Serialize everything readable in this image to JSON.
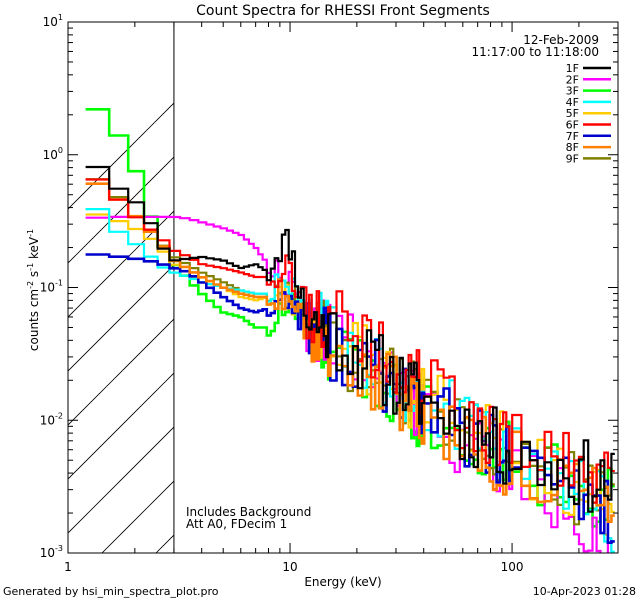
{
  "chart_data": {
    "type": "line",
    "title": "Count Spectra for RHESSI Front Segments",
    "xlabel": "Energy (keV)",
    "ylabel_parts": {
      "base": "counts cm",
      "e1": "-2",
      "mid": " s",
      "e2": "-1",
      "end": " keV",
      "e3": "-1"
    },
    "x_scale": "log",
    "y_scale": "log",
    "xlim": [
      1,
      300
    ],
    "ylim": [
      0.001,
      10
    ],
    "x_ticks": [
      {
        "value": 1,
        "label": "1"
      },
      {
        "value": 10,
        "label": "10"
      },
      {
        "value": 100,
        "label": "100"
      }
    ],
    "y_ticks": [
      {
        "value": 10,
        "base": "10",
        "exp": "1"
      },
      {
        "value": 1,
        "base": "10",
        "exp": "0"
      },
      {
        "value": 0.1,
        "base": "10",
        "exp": "-1"
      },
      {
        "value": 0.01,
        "base": "10",
        "exp": "-2"
      },
      {
        "value": 0.001,
        "base": "10",
        "exp": "-3"
      }
    ],
    "date": "12-Feb-2009",
    "time_range": "11:17:00 to 11:18:00",
    "annotation_lines": [
      "Includes Background",
      "Att A0, FDecim 1"
    ],
    "excluded_region_max_kev": 3,
    "series": [
      {
        "name": "1F",
        "color": "#000000",
        "seed": 11,
        "x": [
          1.2,
          1.5,
          1.8,
          2.2,
          2.6,
          3,
          4,
          5,
          6,
          7,
          8,
          8.5,
          9,
          9.5,
          10,
          10.5,
          11,
          12,
          14,
          17,
          20,
          25,
          30,
          40,
          50,
          60,
          80,
          100,
          150,
          200,
          250,
          290
        ],
        "values": [
          1.0,
          0.68,
          0.5,
          0.4,
          0.21,
          0.16,
          0.17,
          0.16,
          0.14,
          0.15,
          0.13,
          0.17,
          0.2,
          0.23,
          0.21,
          0.15,
          0.1,
          0.06,
          0.05,
          0.042,
          0.032,
          0.025,
          0.02,
          0.014,
          0.011,
          0.009,
          0.007,
          0.0055,
          0.0045,
          0.004,
          0.0035,
          0.003
        ]
      },
      {
        "name": "2F",
        "color": "#ff00ff",
        "seed": 22,
        "x": [
          1.2,
          1.5,
          2,
          2.5,
          3,
          3.5,
          4,
          5,
          6,
          7,
          7.5,
          8,
          9,
          10,
          11,
          12,
          14,
          17,
          20,
          25,
          30,
          40,
          50,
          60,
          80,
          100,
          150,
          200,
          250,
          290
        ],
        "values": [
          0.33,
          0.34,
          0.34,
          0.34,
          0.34,
          0.33,
          0.31,
          0.28,
          0.25,
          0.2,
          0.17,
          0.15,
          0.12,
          0.11,
          0.07,
          0.055,
          0.045,
          0.04,
          0.03,
          0.022,
          0.018,
          0.012,
          0.009,
          0.007,
          0.005,
          0.004,
          0.0028,
          0.002,
          0.0014,
          0.001
        ]
      },
      {
        "name": "3F",
        "color": "#00ff00",
        "seed": 33,
        "x": [
          1.2,
          1.4,
          1.6,
          1.8,
          2,
          2.2,
          2.5,
          3,
          4,
          5,
          6,
          7,
          8,
          9,
          10,
          11,
          12,
          14,
          17,
          20,
          25,
          30,
          40,
          50,
          60,
          80,
          100,
          150,
          200,
          250,
          290
        ],
        "values": [
          2.2,
          2.2,
          1.6,
          1.2,
          0.8,
          0.5,
          0.25,
          0.15,
          0.09,
          0.065,
          0.06,
          0.05,
          0.05,
          0.06,
          0.08,
          0.06,
          0.045,
          0.035,
          0.03,
          0.024,
          0.02,
          0.016,
          0.011,
          0.009,
          0.0075,
          0.006,
          0.005,
          0.0038,
          0.0032,
          0.0028,
          0.0025
        ]
      },
      {
        "name": "4F",
        "color": "#00ffff",
        "seed": 44,
        "x": [
          1.2,
          1.5,
          1.8,
          2.2,
          2.5,
          3,
          3.5,
          4,
          5,
          6,
          7,
          8,
          9,
          10,
          11,
          12,
          14,
          17,
          20,
          25,
          30,
          40,
          50,
          60,
          80,
          100,
          150,
          200,
          250,
          290
        ],
        "values": [
          0.46,
          0.34,
          0.23,
          0.2,
          0.15,
          0.13,
          0.12,
          0.11,
          0.1,
          0.095,
          0.09,
          0.09,
          0.1,
          0.1,
          0.075,
          0.06,
          0.048,
          0.04,
          0.032,
          0.026,
          0.02,
          0.015,
          0.012,
          0.009,
          0.007,
          0.0055,
          0.004,
          0.003,
          0.0022,
          0.0018
        ]
      },
      {
        "name": "5F",
        "color": "#ffcc00",
        "seed": 55,
        "x": [
          1.2,
          1.5,
          1.8,
          2.2,
          2.6,
          3,
          4,
          5,
          6,
          7,
          8,
          9,
          10,
          11,
          12,
          14,
          17,
          20,
          25,
          30,
          40,
          50,
          60,
          80,
          100,
          150,
          200,
          250,
          290
        ],
        "values": [
          0.36,
          0.35,
          0.3,
          0.26,
          0.2,
          0.15,
          0.11,
          0.1,
          0.085,
          0.08,
          0.085,
          0.09,
          0.09,
          0.07,
          0.055,
          0.045,
          0.038,
          0.03,
          0.024,
          0.019,
          0.014,
          0.011,
          0.009,
          0.007,
          0.0055,
          0.004,
          0.0032,
          0.0027,
          0.0023
        ]
      },
      {
        "name": "6F",
        "color": "#ff0000",
        "seed": 66,
        "x": [
          1.2,
          1.5,
          1.8,
          2.2,
          2.6,
          3,
          3.5,
          4,
          5,
          6,
          7,
          8,
          9,
          10,
          11,
          12,
          14,
          17,
          20,
          25,
          30,
          40,
          50,
          60,
          80,
          100,
          150,
          200,
          250,
          290
        ],
        "values": [
          0.72,
          0.6,
          0.4,
          0.3,
          0.24,
          0.19,
          0.17,
          0.15,
          0.14,
          0.13,
          0.12,
          0.12,
          0.14,
          0.13,
          0.1,
          0.07,
          0.06,
          0.05,
          0.04,
          0.032,
          0.025,
          0.018,
          0.014,
          0.011,
          0.008,
          0.0065,
          0.005,
          0.004,
          0.0035,
          0.003
        ]
      },
      {
        "name": "7F",
        "color": "#0000cc",
        "seed": 77,
        "x": [
          1.2,
          1.5,
          2,
          2.5,
          3,
          3.5,
          4,
          5,
          6,
          7,
          8,
          9,
          10,
          11,
          12,
          14,
          17,
          20,
          25,
          30,
          40,
          50,
          60,
          80,
          100,
          150,
          200,
          250,
          290
        ],
        "values": [
          0.18,
          0.175,
          0.165,
          0.155,
          0.14,
          0.13,
          0.11,
          0.085,
          0.07,
          0.065,
          0.07,
          0.08,
          0.085,
          0.065,
          0.05,
          0.042,
          0.034,
          0.028,
          0.022,
          0.017,
          0.013,
          0.01,
          0.008,
          0.006,
          0.0048,
          0.0036,
          0.0029,
          0.0024,
          0.002
        ]
      },
      {
        "name": "8F",
        "color": "#ff8000",
        "seed": 88,
        "x": [
          1.2,
          1.5,
          1.8,
          2.2,
          2.6,
          3,
          4,
          5,
          6,
          7,
          8,
          9,
          10,
          11,
          12,
          14,
          17,
          20,
          25,
          30,
          40,
          50,
          60,
          80,
          100,
          150,
          200,
          250,
          290
        ],
        "values": [
          0.68,
          0.55,
          0.42,
          0.3,
          0.22,
          0.16,
          0.12,
          0.1,
          0.09,
          0.085,
          0.085,
          0.09,
          0.09,
          0.07,
          0.05,
          0.04,
          0.033,
          0.026,
          0.02,
          0.016,
          0.012,
          0.009,
          0.0075,
          0.0058,
          0.0046,
          0.0035,
          0.0028,
          0.0024,
          0.002
        ]
      },
      {
        "name": "9F",
        "color": "#808000",
        "seed": 99,
        "x": [
          1.2,
          1.5,
          1.8,
          2.2,
          2.6,
          3,
          4,
          5,
          6,
          7,
          8,
          9,
          10,
          11,
          12,
          14,
          17,
          20,
          25,
          30,
          40,
          50,
          60,
          80,
          100,
          150,
          200,
          250,
          290
        ],
        "values": [
          0.7,
          0.62,
          0.42,
          0.3,
          0.22,
          0.17,
          0.13,
          0.11,
          0.095,
          0.09,
          0.09,
          0.1,
          0.1,
          0.075,
          0.055,
          0.045,
          0.036,
          0.028,
          0.022,
          0.018,
          0.013,
          0.01,
          0.0082,
          0.0063,
          0.005,
          0.0038,
          0.003,
          0.0026,
          0.0022
        ]
      }
    ]
  },
  "footer": {
    "generated_by": "Generated by hsi_min_spectra_plot.pro",
    "timestamp": "10-Apr-2023 01:28"
  }
}
